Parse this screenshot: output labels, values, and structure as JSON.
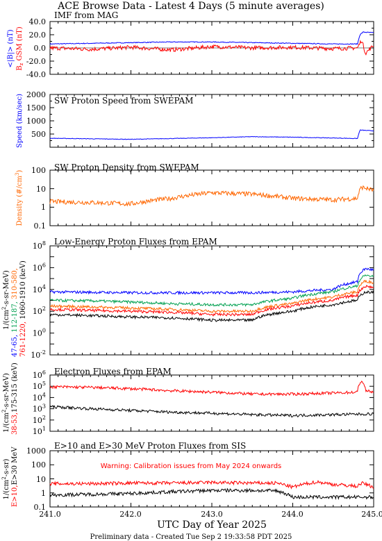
{
  "page": {
    "title": "ACE Browse Data - Latest 4 Days (5 minute averages)",
    "xlabel": "UTC Day of Year 2025",
    "footer": "Preliminary data - Created Tue Sep  2 19:33:58 PDT 2025",
    "x_ticks": [
      "241.0",
      "242.0",
      "243.0",
      "244.0",
      "245.0"
    ]
  },
  "panels": {
    "mag": {
      "title": "IMF from MAG",
      "ylabel_blue": "<|B|> (nT)",
      "ylabel_red": "B",
      "ylabel_red_sub": "z",
      "ylabel_red_tail": " GSM (nT)",
      "yticks": [
        "40.0",
        "20.0",
        "0.0",
        "-20.0",
        "-40.0"
      ]
    },
    "speed": {
      "title": "SW Proton Speed from SWEPAM",
      "ylabel": "Speed (km/sec)",
      "yticks": [
        "2000",
        "1500",
        "1000",
        "500"
      ]
    },
    "density": {
      "title": "SW Proton Density from SWEPAM",
      "ylabel_main": "Density (#/cm",
      "ylabel_sup": "3",
      "ylabel_close": ")",
      "yticks": [
        "100",
        "10",
        "1",
        "0.1"
      ]
    },
    "proton": {
      "title": "Low-Energy Proton Fluxes from EPAM",
      "ylabel_unit_a": "1/(cm",
      "ylabel_unit_sup": "2",
      "ylabel_unit_b": "-s-sr-MeV)",
      "ch_47": "47-65,",
      "ch_112": "112-187,",
      "ch_310": "310-580,",
      "ch_761": "761-1220,",
      "ch_1060": "1060-1910 (keV)",
      "ytick_base": "10",
      "ytick_exps": [
        "8",
        "6",
        "4",
        "2",
        "0",
        "-2"
      ]
    },
    "electron": {
      "title": "Electron Fluxes from EPAM",
      "ylabel_unit_a": "1/(cm",
      "ylabel_unit_sup": "2",
      "ylabel_unit_b": "-s-sr-MeV)",
      "ch_38": "38-53,",
      "ch_175": "175-315 (keV)",
      "ytick_base": "10",
      "ytick_exps": [
        "6",
        "5",
        "4",
        "3",
        "2",
        "1"
      ]
    },
    "sis": {
      "title": "E>10 and E>30 MeV Proton Fluxes from SIS",
      "warning": "Warning: Calibration issues from May 2024 onwards",
      "ylabel_unit_a": "1/(cm",
      "ylabel_unit_sup": "2",
      "ylabel_unit_b": "-s-sr)",
      "ch_10": "E>10,",
      "ch_30": "E>30 MeV",
      "yticks": [
        "1000",
        "100",
        "10",
        "1",
        "0.1"
      ]
    }
  },
  "colors": {
    "blue": "#0000ff",
    "red": "#ff0000",
    "green": "#00a050",
    "orange": "#ff6600",
    "black": "#000000"
  },
  "chart_data": [
    {
      "type": "line",
      "title": "IMF from MAG",
      "xlim": [
        241.0,
        245.0
      ],
      "ylim": [
        -40,
        40
      ],
      "series": [
        {
          "name": "<|B|> (nT)",
          "color": "#0000ff",
          "x": [
            241.0,
            241.5,
            242.0,
            242.5,
            243.0,
            243.5,
            244.0,
            244.5,
            244.8,
            244.83,
            244.87,
            245.0
          ],
          "y": [
            6,
            7,
            8,
            9,
            9,
            8,
            7,
            6,
            6,
            20,
            24,
            23
          ]
        },
        {
          "name": "Bz GSM (nT)",
          "color": "#ff0000",
          "x": [
            241.0,
            241.5,
            242.0,
            242.5,
            243.0,
            243.5,
            244.0,
            244.5,
            244.8,
            244.85,
            244.9,
            245.0
          ],
          "y": [
            0,
            -2,
            1,
            -3,
            2,
            0,
            1,
            -1,
            0,
            12,
            -8,
            4
          ]
        }
      ]
    },
    {
      "type": "line",
      "title": "SW Proton Speed from SWEPAM",
      "xlim": [
        241.0,
        245.0
      ],
      "ylim": [
        0,
        2000
      ],
      "series": [
        {
          "name": "Speed (km/sec)",
          "color": "#0000ff",
          "x": [
            241.0,
            241.5,
            242.0,
            242.5,
            243.0,
            243.5,
            244.0,
            244.5,
            244.8,
            244.83,
            245.0
          ],
          "y": [
            340,
            320,
            300,
            330,
            360,
            400,
            380,
            350,
            330,
            650,
            620
          ]
        }
      ]
    },
    {
      "type": "line",
      "title": "SW Proton Density from SWEPAM",
      "xlim": [
        241.0,
        245.0
      ],
      "ylim": [
        0.1,
        100
      ],
      "yscale": "log",
      "series": [
        {
          "name": "Density (#/cm3)",
          "color": "#ff6600",
          "x": [
            241.0,
            241.5,
            242.0,
            242.5,
            243.0,
            243.5,
            244.0,
            244.5,
            244.8,
            244.85,
            245.0
          ],
          "y": [
            2,
            1.8,
            1.5,
            3,
            6,
            5,
            3,
            2.5,
            3,
            12,
            8
          ]
        }
      ]
    },
    {
      "type": "line",
      "title": "Low-Energy Proton Fluxes from EPAM",
      "xlim": [
        241.0,
        245.0
      ],
      "ylim": [
        0.01,
        100000000
      ],
      "yscale": "log",
      "series": [
        {
          "name": "47-65",
          "color": "#0000ff",
          "x": [
            241.0,
            241.5,
            242.0,
            242.5,
            243.0,
            243.5,
            244.0,
            244.5,
            244.8,
            244.9,
            245.0
          ],
          "y": [
            6000,
            5500,
            5000,
            5000,
            5000,
            5000,
            6000,
            10000,
            50000,
            800000,
            600000
          ]
        },
        {
          "name": "112-187",
          "color": "#00a050",
          "x": [
            241.0,
            241.5,
            242.0,
            242.5,
            243.0,
            243.5,
            244.0,
            244.5,
            244.8,
            244.9,
            245.0
          ],
          "y": [
            1000,
            900,
            700,
            500,
            400,
            400,
            1500,
            6000,
            20000,
            200000,
            150000
          ]
        },
        {
          "name": "310-580",
          "color": "#ff6600",
          "x": [
            241.0,
            241.5,
            242.0,
            242.5,
            243.0,
            243.5,
            244.0,
            244.5,
            244.8,
            244.9,
            245.0
          ],
          "y": [
            300,
            250,
            200,
            150,
            100,
            100,
            500,
            2000,
            6000,
            60000,
            40000
          ]
        },
        {
          "name": "761-1220",
          "color": "#ff0000",
          "x": [
            241.0,
            241.5,
            242.0,
            242.5,
            243.0,
            243.5,
            244.0,
            244.5,
            244.8,
            244.9,
            245.0
          ],
          "y": [
            150,
            120,
            100,
            80,
            50,
            50,
            300,
            1000,
            3000,
            20000,
            15000
          ]
        },
        {
          "name": "1060-1910",
          "color": "#000000",
          "x": [
            241.0,
            241.5,
            242.0,
            242.5,
            243.0,
            243.5,
            244.0,
            244.5,
            244.8,
            244.9,
            245.0
          ],
          "y": [
            50,
            40,
            30,
            25,
            15,
            15,
            100,
            400,
            1000,
            6000,
            5000
          ]
        }
      ]
    },
    {
      "type": "line",
      "title": "Electron Fluxes from EPAM",
      "xlim": [
        241.0,
        245.0
      ],
      "ylim": [
        10,
        1000000
      ],
      "yscale": "log",
      "series": [
        {
          "name": "38-53",
          "color": "#ff0000",
          "x": [
            241.0,
            241.5,
            242.0,
            242.5,
            243.0,
            243.5,
            244.0,
            244.5,
            244.8,
            244.85,
            244.9,
            245.0
          ],
          "y": [
            90000,
            80000,
            60000,
            40000,
            30000,
            20000,
            20000,
            25000,
            30000,
            300000,
            40000,
            30000
          ]
        },
        {
          "name": "175-315",
          "color": "#000000",
          "x": [
            241.0,
            241.5,
            242.0,
            242.5,
            243.0,
            243.5,
            244.0,
            244.5,
            245.0
          ],
          "y": [
            1500,
            1000,
            700,
            500,
            400,
            300,
            250,
            300,
            350
          ]
        }
      ]
    },
    {
      "type": "line",
      "title": "E>10 and E>30 MeV Proton Fluxes from SIS",
      "xlim": [
        241.0,
        245.0
      ],
      "ylim": [
        0.1,
        1000
      ],
      "yscale": "log",
      "series": [
        {
          "name": "E>10",
          "color": "#ff0000",
          "x": [
            241.0,
            241.5,
            242.0,
            242.5,
            243.0,
            243.5,
            243.8,
            244.0,
            244.3,
            244.5,
            244.8,
            244.85,
            245.0
          ],
          "y": [
            4.5,
            4.5,
            5,
            5,
            5.5,
            5,
            5,
            2.5,
            6,
            4,
            3,
            5,
            2.5
          ]
        },
        {
          "name": "E>30 MeV",
          "color": "#000000",
          "x": [
            241.0,
            241.5,
            242.0,
            242.5,
            243.0,
            243.5,
            243.8,
            244.0,
            244.5,
            245.0
          ],
          "y": [
            0.7,
            0.8,
            0.9,
            1.2,
            1.5,
            1.5,
            1.4,
            0.5,
            0.5,
            0.5
          ]
        }
      ]
    }
  ]
}
